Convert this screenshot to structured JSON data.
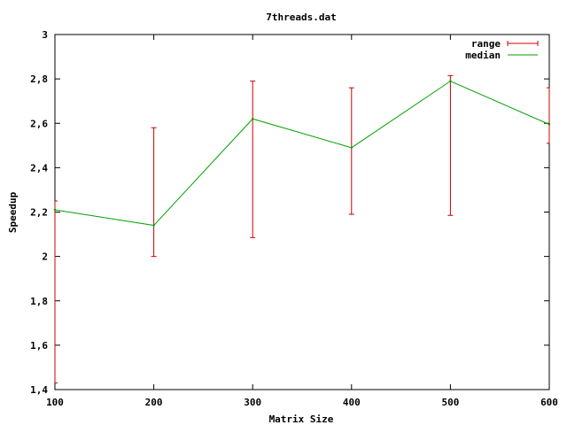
{
  "chart_data": {
    "type": "line",
    "title": "7threads.dat",
    "xlabel": "Matrix Size",
    "ylabel": "Speedup",
    "xlim": [
      100,
      600
    ],
    "ylim": [
      1.4,
      3
    ],
    "x_ticks": [
      "100",
      "200",
      "300",
      "400",
      "500",
      "600"
    ],
    "y_ticks": [
      "1.4",
      "1.6",
      "1.8",
      "2",
      "2.2",
      "2.4",
      "2.6",
      "2.8",
      "3"
    ],
    "legend_position": "top-right",
    "grid": false,
    "series": [
      {
        "name": "range",
        "kind": "errorbar",
        "color": "#cc0000",
        "points": [
          {
            "x": 100,
            "low": 1.43,
            "high": 2.25
          },
          {
            "x": 200,
            "low": 2.0,
            "high": 2.58
          },
          {
            "x": 300,
            "low": 2.085,
            "high": 2.79
          },
          {
            "x": 400,
            "low": 2.19,
            "high": 2.76
          },
          {
            "x": 500,
            "low": 2.185,
            "high": 2.815
          },
          {
            "x": 600,
            "low": 2.51,
            "high": 2.76
          }
        ]
      },
      {
        "name": "median",
        "kind": "line",
        "color": "#00a000",
        "x": [
          100,
          200,
          300,
          400,
          500,
          600
        ],
        "y": [
          2.21,
          2.14,
          2.62,
          2.49,
          2.79,
          2.595
        ]
      }
    ]
  }
}
